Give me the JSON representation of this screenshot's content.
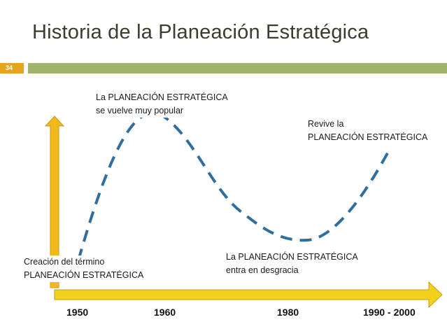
{
  "slide": {
    "title": "Historia de la Planeación Estratégica",
    "number": "34"
  },
  "annotations": [
    {
      "id": "creation",
      "line1": "Creación del término",
      "line2": "PLANEACIÓN ESTRATÉGICA"
    },
    {
      "id": "popular",
      "line1": "La PLANEACIÓN ESTRATÉGICA",
      "line2": "se vuelve muy popular"
    },
    {
      "id": "decline",
      "line1": "La PLANEACIÓN ESTRATÉGICA",
      "line2": "entra en desgracia"
    },
    {
      "id": "revival",
      "line1": "Revive la",
      "line2": "PLANEACIÓN ESTRATÉGICA"
    }
  ],
  "timeline": {
    "years": [
      "1950",
      "1960",
      "1980",
      "1990 - 2000"
    ]
  },
  "colors": {
    "title": "#3b3b2f",
    "accent_bar": "#a1b36b",
    "slide_number_bg": "#e7a21e",
    "arrow_fill": "#f2d11b",
    "arrow_stroke": "#c79a1c",
    "vertical_arrow_fill": "#f3b819",
    "curve": "#2f6e9e"
  }
}
